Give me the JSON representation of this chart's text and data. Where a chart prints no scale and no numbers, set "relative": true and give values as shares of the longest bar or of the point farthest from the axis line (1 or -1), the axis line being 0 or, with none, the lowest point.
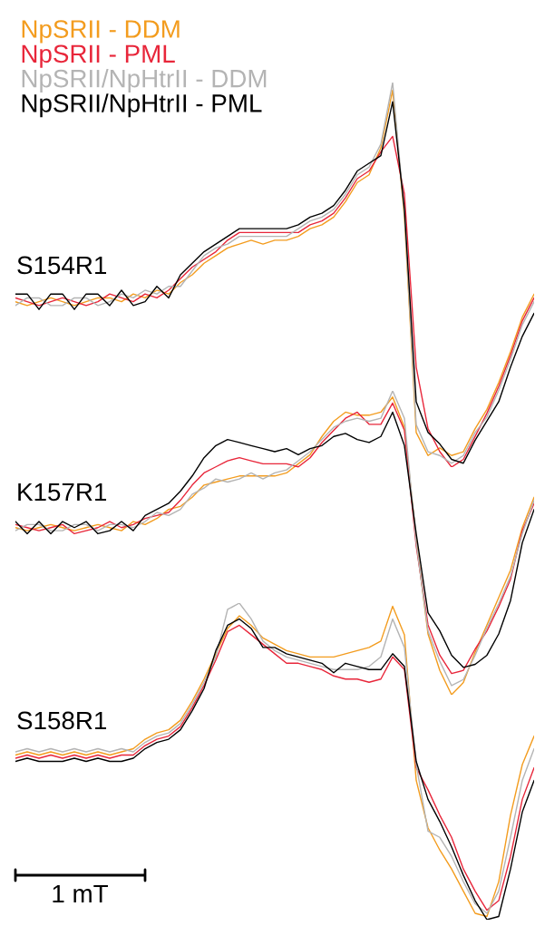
{
  "chart_data": [
    {
      "type": "line",
      "relative": true,
      "legend": "top left",
      "annotations": [
        "S154R1"
      ],
      "categories": [
        null,
        null,
        null,
        null,
        null,
        null,
        null,
        null,
        null,
        null,
        null,
        null,
        null,
        null,
        null,
        null,
        null,
        null,
        null,
        null,
        null,
        null,
        null,
        null,
        null,
        null,
        null,
        null,
        null,
        null,
        null,
        null,
        null,
        null,
        null,
        null,
        null,
        null,
        null,
        null,
        null,
        null,
        null,
        null,
        null
      ],
      "series": [
        {
          "name": "NpSRII - DDM",
          "color": "#f39c1e",
          "values": [
            0.43,
            0.42,
            0.43,
            0.44,
            0.43,
            0.42,
            0.43,
            0.44,
            0.44,
            0.43,
            0.45,
            0.44,
            0.46,
            0.45,
            0.48,
            0.5,
            0.53,
            0.55,
            0.57,
            0.58,
            0.59,
            0.58,
            0.59,
            0.59,
            0.6,
            0.62,
            0.63,
            0.65,
            0.69,
            0.74,
            0.76,
            0.83,
            0.98,
            0.65,
            0.09,
            0.03,
            0.05,
            0.03,
            0.04,
            0.1,
            0.15,
            0.22,
            0.3,
            0.39,
            0.45
          ]
        },
        {
          "name": "NpSRII - PML",
          "color": "#e8263a",
          "values": [
            0.44,
            0.43,
            0.42,
            0.43,
            0.44,
            0.43,
            0.42,
            0.43,
            0.45,
            0.44,
            0.43,
            0.45,
            0.44,
            0.46,
            0.49,
            0.52,
            0.54,
            0.56,
            0.59,
            0.61,
            0.61,
            0.61,
            0.61,
            0.61,
            0.61,
            0.63,
            0.64,
            0.66,
            0.7,
            0.75,
            0.77,
            0.82,
            0.86,
            0.71,
            0.26,
            0.1,
            0.04,
            0.0,
            0.02,
            0.08,
            0.14,
            0.21,
            0.29,
            0.38,
            0.44
          ]
        },
        {
          "name": "NpSRII/NpHtrII - DDM",
          "color": "#b4b4b4",
          "values": [
            0.42,
            0.44,
            0.44,
            0.42,
            0.42,
            0.44,
            0.44,
            0.42,
            0.43,
            0.45,
            0.44,
            0.46,
            0.45,
            0.47,
            0.47,
            0.51,
            0.55,
            0.57,
            0.58,
            0.6,
            0.6,
            0.6,
            0.6,
            0.6,
            0.62,
            0.64,
            0.65,
            0.67,
            0.71,
            0.76,
            0.78,
            0.84,
            1.0,
            0.66,
            0.11,
            0.04,
            0.03,
            0.01,
            0.03,
            0.09,
            0.13,
            0.2,
            0.28,
            0.37,
            0.43
          ]
        },
        {
          "name": "NpSRII/NpHtrII - PML",
          "color": "#000000",
          "values": [
            0.45,
            0.45,
            0.41,
            0.45,
            0.45,
            0.41,
            0.45,
            0.45,
            0.42,
            0.46,
            0.42,
            0.43,
            0.47,
            0.44,
            0.5,
            0.53,
            0.56,
            0.58,
            0.6,
            0.62,
            0.62,
            0.62,
            0.62,
            0.62,
            0.63,
            0.65,
            0.66,
            0.68,
            0.72,
            0.77,
            0.79,
            0.81,
            0.95,
            0.67,
            0.17,
            0.09,
            0.06,
            0.02,
            0.01,
            0.07,
            0.12,
            0.17,
            0.26,
            0.34,
            0.4
          ]
        }
      ]
    },
    {
      "type": "line",
      "relative": true,
      "annotations": [
        "K157R1"
      ],
      "categories": [
        null,
        null,
        null,
        null,
        null,
        null,
        null,
        null,
        null,
        null,
        null,
        null,
        null,
        null,
        null,
        null,
        null,
        null,
        null,
        null,
        null,
        null,
        null,
        null,
        null,
        null,
        null,
        null,
        null,
        null,
        null,
        null,
        null,
        null,
        null,
        null,
        null,
        null,
        null,
        null,
        null,
        null,
        null,
        null,
        null
      ],
      "series": [
        {
          "color": "#f39c1e",
          "values": [
            0.55,
            0.54,
            0.55,
            0.56,
            0.55,
            0.54,
            0.55,
            0.56,
            0.55,
            0.54,
            0.57,
            0.56,
            0.58,
            0.61,
            0.62,
            0.65,
            0.69,
            0.7,
            0.71,
            0.72,
            0.72,
            0.72,
            0.72,
            0.73,
            0.76,
            0.79,
            0.85,
            0.9,
            0.93,
            0.92,
            0.92,
            0.93,
            0.98,
            0.88,
            0.51,
            0.2,
            0.08,
            0.0,
            0.04,
            0.14,
            0.23,
            0.32,
            0.41,
            0.55,
            0.65
          ]
        },
        {
          "color": "#e8263a",
          "values": [
            0.56,
            0.55,
            0.54,
            0.55,
            0.56,
            0.53,
            0.54,
            0.55,
            0.57,
            0.55,
            0.56,
            0.58,
            0.59,
            0.6,
            0.64,
            0.69,
            0.73,
            0.75,
            0.77,
            0.78,
            0.77,
            0.76,
            0.76,
            0.76,
            0.75,
            0.78,
            0.83,
            0.87,
            0.91,
            0.93,
            0.89,
            0.89,
            0.96,
            0.87,
            0.49,
            0.23,
            0.13,
            0.07,
            0.08,
            0.15,
            0.21,
            0.29,
            0.38,
            0.54,
            0.63
          ]
        },
        {
          "color": "#b4b4b4",
          "values": [
            0.54,
            0.56,
            0.56,
            0.54,
            0.54,
            0.56,
            0.56,
            0.54,
            0.56,
            0.56,
            0.55,
            0.57,
            0.6,
            0.59,
            0.61,
            0.66,
            0.68,
            0.71,
            0.7,
            0.71,
            0.73,
            0.71,
            0.73,
            0.74,
            0.77,
            0.8,
            0.84,
            0.88,
            0.9,
            0.91,
            0.9,
            0.91,
            1.0,
            0.91,
            0.5,
            0.21,
            0.11,
            0.03,
            0.05,
            0.13,
            0.22,
            0.3,
            0.39,
            0.53,
            0.64
          ]
        },
        {
          "color": "#000000",
          "values": [
            0.57,
            0.53,
            0.57,
            0.53,
            0.57,
            0.55,
            0.57,
            0.53,
            0.54,
            0.57,
            0.54,
            0.59,
            0.61,
            0.63,
            0.67,
            0.72,
            0.78,
            0.82,
            0.84,
            0.83,
            0.82,
            0.81,
            0.8,
            0.81,
            0.79,
            0.81,
            0.82,
            0.85,
            0.86,
            0.84,
            0.83,
            0.85,
            0.93,
            0.82,
            0.53,
            0.27,
            0.21,
            0.13,
            0.09,
            0.1,
            0.13,
            0.2,
            0.31,
            0.5,
            0.61
          ]
        }
      ]
    },
    {
      "type": "line",
      "relative": true,
      "annotations": [
        "S158R1",
        "1 mT"
      ],
      "categories": [
        null,
        null,
        null,
        null,
        null,
        null,
        null,
        null,
        null,
        null,
        null,
        null,
        null,
        null,
        null,
        null,
        null,
        null,
        null,
        null,
        null,
        null,
        null,
        null,
        null,
        null,
        null,
        null,
        null,
        null,
        null,
        null,
        null,
        null,
        null,
        null,
        null,
        null,
        null,
        null,
        null,
        null,
        null,
        null,
        null
      ],
      "series": [
        {
          "color": "#f39c1e",
          "values": [
            0.52,
            0.53,
            0.52,
            0.53,
            0.52,
            0.53,
            0.52,
            0.53,
            0.52,
            0.53,
            0.54,
            0.57,
            0.59,
            0.6,
            0.63,
            0.69,
            0.76,
            0.84,
            0.92,
            0.96,
            0.93,
            0.89,
            0.87,
            0.85,
            0.84,
            0.83,
            0.83,
            0.83,
            0.84,
            0.85,
            0.86,
            0.88,
            0.99,
            0.9,
            0.44,
            0.29,
            0.22,
            0.16,
            0.09,
            0.02,
            0.01,
            0.12,
            0.33,
            0.49,
            0.58
          ]
        },
        {
          "color": "#e8263a",
          "values": [
            0.51,
            0.52,
            0.51,
            0.52,
            0.51,
            0.52,
            0.51,
            0.52,
            0.51,
            0.52,
            0.52,
            0.55,
            0.57,
            0.58,
            0.61,
            0.67,
            0.74,
            0.82,
            0.91,
            0.93,
            0.9,
            0.87,
            0.84,
            0.81,
            0.81,
            0.8,
            0.79,
            0.77,
            0.76,
            0.76,
            0.75,
            0.76,
            0.83,
            0.79,
            0.48,
            0.41,
            0.33,
            0.26,
            0.16,
            0.09,
            0.03,
            0.06,
            0.2,
            0.38,
            0.48
          ]
        },
        {
          "color": "#b4b4b4",
          "values": [
            0.53,
            0.54,
            0.53,
            0.54,
            0.53,
            0.54,
            0.53,
            0.54,
            0.53,
            0.54,
            0.53,
            0.56,
            0.58,
            0.59,
            0.62,
            0.68,
            0.75,
            0.83,
            0.98,
            1.0,
            0.95,
            0.88,
            0.85,
            0.83,
            0.82,
            0.81,
            0.8,
            0.79,
            0.79,
            0.79,
            0.8,
            0.83,
            0.95,
            0.86,
            0.49,
            0.28,
            0.26,
            0.2,
            0.12,
            0.05,
            0.02,
            0.09,
            0.26,
            0.44,
            0.54
          ]
        },
        {
          "color": "#000000",
          "values": [
            0.5,
            0.51,
            0.5,
            0.5,
            0.5,
            0.51,
            0.5,
            0.51,
            0.5,
            0.5,
            0.51,
            0.54,
            0.56,
            0.57,
            0.6,
            0.66,
            0.73,
            0.85,
            0.93,
            0.95,
            0.92,
            0.86,
            0.86,
            0.84,
            0.83,
            0.82,
            0.81,
            0.78,
            0.81,
            0.8,
            0.79,
            0.79,
            0.84,
            0.8,
            0.5,
            0.38,
            0.31,
            0.23,
            0.14,
            0.06,
            0.0,
            0.01,
            0.16,
            0.34,
            0.44
          ]
        }
      ]
    }
  ]
}
